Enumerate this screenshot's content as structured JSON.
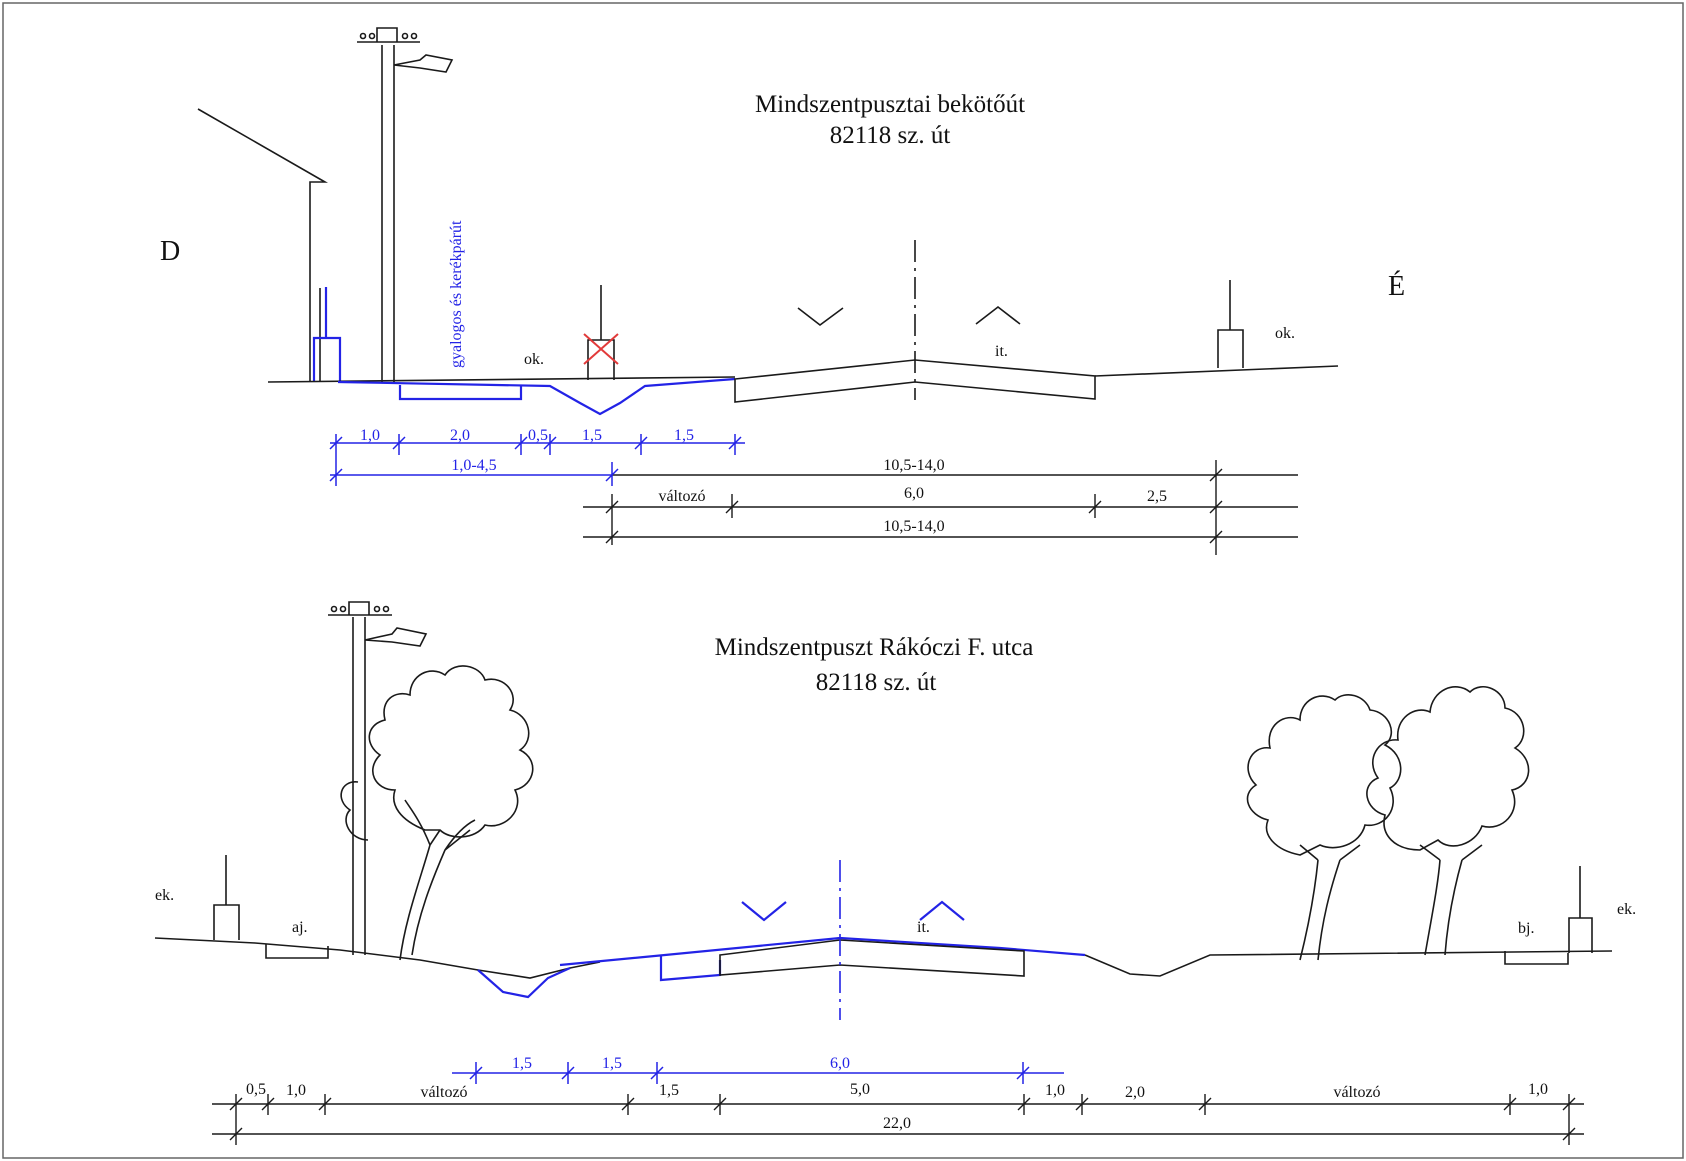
{
  "section1": {
    "title_line1": "Mindszentpusztai bekötőút",
    "title_line2": "82118 sz. út",
    "dir_left": "D",
    "dir_right": "É",
    "path_label": "gyalogos és kerékpárút",
    "label_ok_left": "ok.",
    "label_it": "it.",
    "label_ok_right": "ok.",
    "dims_blue": [
      "1,0",
      "2,0",
      "0,5",
      "1,5",
      "1,5"
    ],
    "dim_range_left": "1,0-4,5",
    "dim_total_a": "10,5-14,0",
    "dim_valtozo": "változó",
    "dim_road": "6,0",
    "dim_right": "2,5",
    "dim_total_b": "10,5-14,0"
  },
  "section2": {
    "title_line1": "Mindszentpuszt  Rákóczi F. utca",
    "title_line2": "82118 sz. út",
    "label_ek_left": "ek.",
    "label_aj": "aj.",
    "label_it": "it.",
    "label_bj": "bj.",
    "label_ek_right": "ek.",
    "dims_blue": [
      "1,5",
      "1,5",
      "6,0"
    ],
    "dims_row": [
      "0,5",
      "1,0",
      "változó",
      "1,5",
      "5,0",
      "1,0",
      "2,0",
      "változó",
      "1,0"
    ],
    "dim_total": "22,0"
  },
  "colors": {
    "line": "#1a1a1a",
    "accent_blue": "#2323e6",
    "cross": "#e23a3a"
  }
}
